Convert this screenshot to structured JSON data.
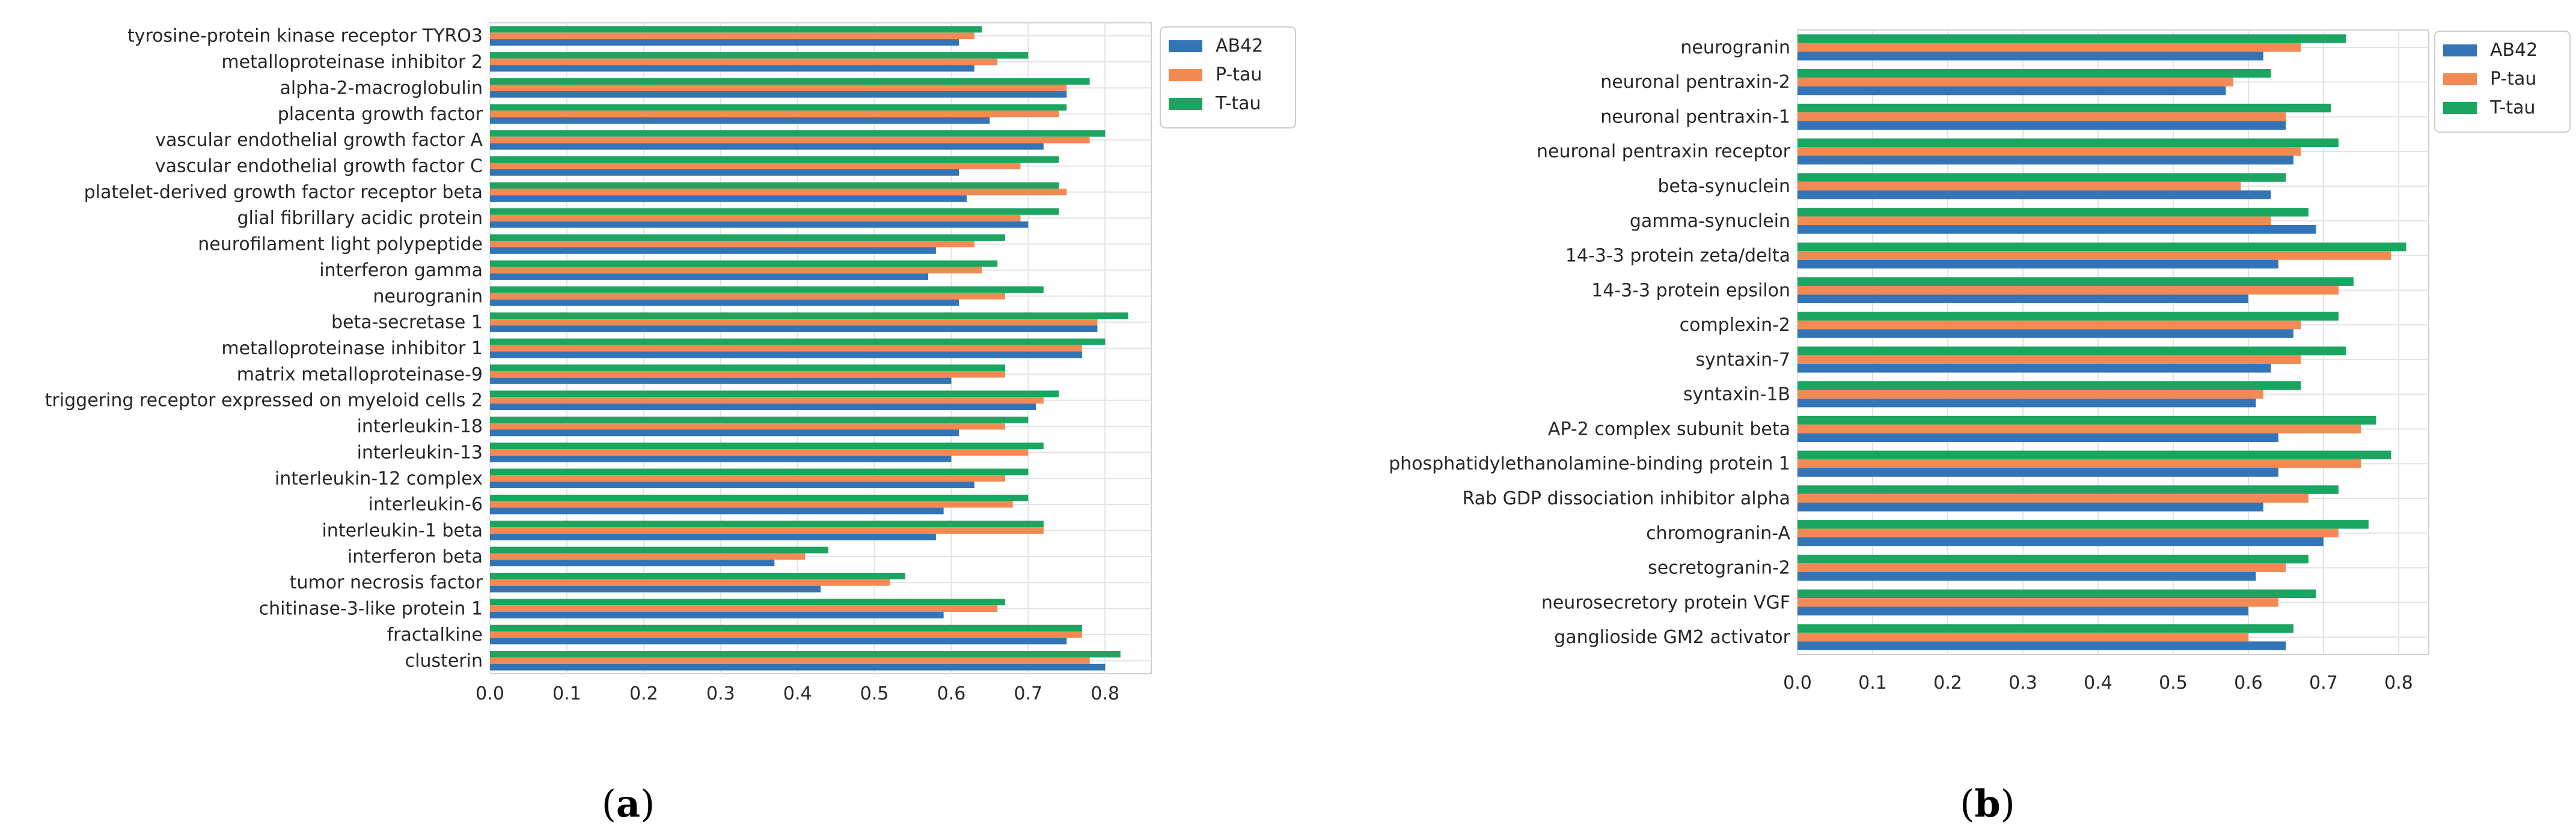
{
  "colors": {
    "AB42": "#3274b5",
    "P-tau": "#f28a54",
    "T-tau": "#1ba560",
    "grid": "#e3e3e3",
    "axis": "#d0d0d0"
  },
  "chart_data": [
    {
      "panel": "a",
      "panel_label": {
        "open": "(",
        "letter": "a",
        "close": ")"
      },
      "type": "bar",
      "orientation": "horizontal",
      "xlim": [
        0.0,
        0.86
      ],
      "xticks": [
        "0.0",
        "0.1",
        "0.2",
        "0.3",
        "0.4",
        "0.5",
        "0.6",
        "0.7",
        "0.8"
      ],
      "legend_position": "top-right",
      "categories": [
        "tyrosine-protein kinase receptor TYRO3",
        "metalloproteinase inhibitor 2",
        "alpha-2-macroglobulin",
        "placenta growth factor",
        "vascular endothelial growth factor A",
        "vascular endothelial growth factor C",
        "platelet-derived growth factor receptor beta",
        "glial fibrillary acidic protein",
        "neurofilament light polypeptide",
        "interferon gamma",
        "neurogranin",
        "beta-secretase 1",
        "metalloproteinase inhibitor 1",
        "matrix metalloproteinase-9",
        "triggering receptor expressed on myeloid cells 2",
        "interleukin-18",
        "interleukin-13",
        "interleukin-12 complex",
        "interleukin-6",
        "interleukin-1 beta",
        "interferon beta",
        "tumor necrosis factor",
        "chitinase-3-like protein 1",
        "fractalkine",
        "clusterin"
      ],
      "series": [
        {
          "name": "AB42",
          "values": [
            0.61,
            0.63,
            0.75,
            0.65,
            0.72,
            0.61,
            0.62,
            0.7,
            0.58,
            0.57,
            0.61,
            0.79,
            0.77,
            0.6,
            0.71,
            0.61,
            0.6,
            0.63,
            0.59,
            0.58,
            0.37,
            0.43,
            0.59,
            0.75,
            0.8
          ]
        },
        {
          "name": "P-tau",
          "values": [
            0.63,
            0.66,
            0.75,
            0.74,
            0.78,
            0.69,
            0.75,
            0.69,
            0.63,
            0.64,
            0.67,
            0.79,
            0.77,
            0.67,
            0.72,
            0.67,
            0.7,
            0.67,
            0.68,
            0.72,
            0.41,
            0.52,
            0.66,
            0.77,
            0.78
          ]
        },
        {
          "name": "T-tau",
          "values": [
            0.64,
            0.7,
            0.78,
            0.75,
            0.8,
            0.74,
            0.74,
            0.74,
            0.67,
            0.66,
            0.72,
            0.83,
            0.8,
            0.67,
            0.74,
            0.7,
            0.72,
            0.7,
            0.7,
            0.72,
            0.44,
            0.54,
            0.67,
            0.77,
            0.82
          ]
        }
      ]
    },
    {
      "panel": "b",
      "panel_label": {
        "open": "(",
        "letter": "b",
        "close": ")"
      },
      "type": "bar",
      "orientation": "horizontal",
      "xlim": [
        0.0,
        0.84
      ],
      "xticks": [
        "0.0",
        "0.1",
        "0.2",
        "0.3",
        "0.4",
        "0.5",
        "0.6",
        "0.7",
        "0.8"
      ],
      "legend_position": "top-right",
      "categories": [
        "neurogranin",
        "neuronal pentraxin-2",
        "neuronal pentraxin-1",
        "neuronal pentraxin receptor",
        "beta-synuclein",
        "gamma-synuclein",
        "14-3-3 protein zeta/delta",
        "14-3-3 protein epsilon",
        "complexin-2",
        "syntaxin-7",
        "syntaxin-1B",
        "AP-2 complex subunit beta",
        "phosphatidylethanolamine-binding protein 1",
        "Rab GDP dissociation inhibitor alpha",
        "chromogranin-A",
        "secretogranin-2",
        "neurosecretory protein VGF",
        "ganglioside GM2 activator"
      ],
      "series": [
        {
          "name": "AB42",
          "values": [
            0.62,
            0.57,
            0.65,
            0.66,
            0.63,
            0.69,
            0.64,
            0.6,
            0.66,
            0.63,
            0.61,
            0.64,
            0.64,
            0.62,
            0.7,
            0.61,
            0.6,
            0.65
          ]
        },
        {
          "name": "P-tau",
          "values": [
            0.67,
            0.58,
            0.65,
            0.67,
            0.59,
            0.63,
            0.79,
            0.72,
            0.67,
            0.67,
            0.62,
            0.75,
            0.75,
            0.68,
            0.72,
            0.65,
            0.64,
            0.6
          ]
        },
        {
          "name": "T-tau",
          "values": [
            0.73,
            0.63,
            0.71,
            0.72,
            0.65,
            0.68,
            0.81,
            0.74,
            0.72,
            0.73,
            0.67,
            0.77,
            0.79,
            0.72,
            0.76,
            0.68,
            0.69,
            0.66
          ]
        }
      ]
    }
  ]
}
